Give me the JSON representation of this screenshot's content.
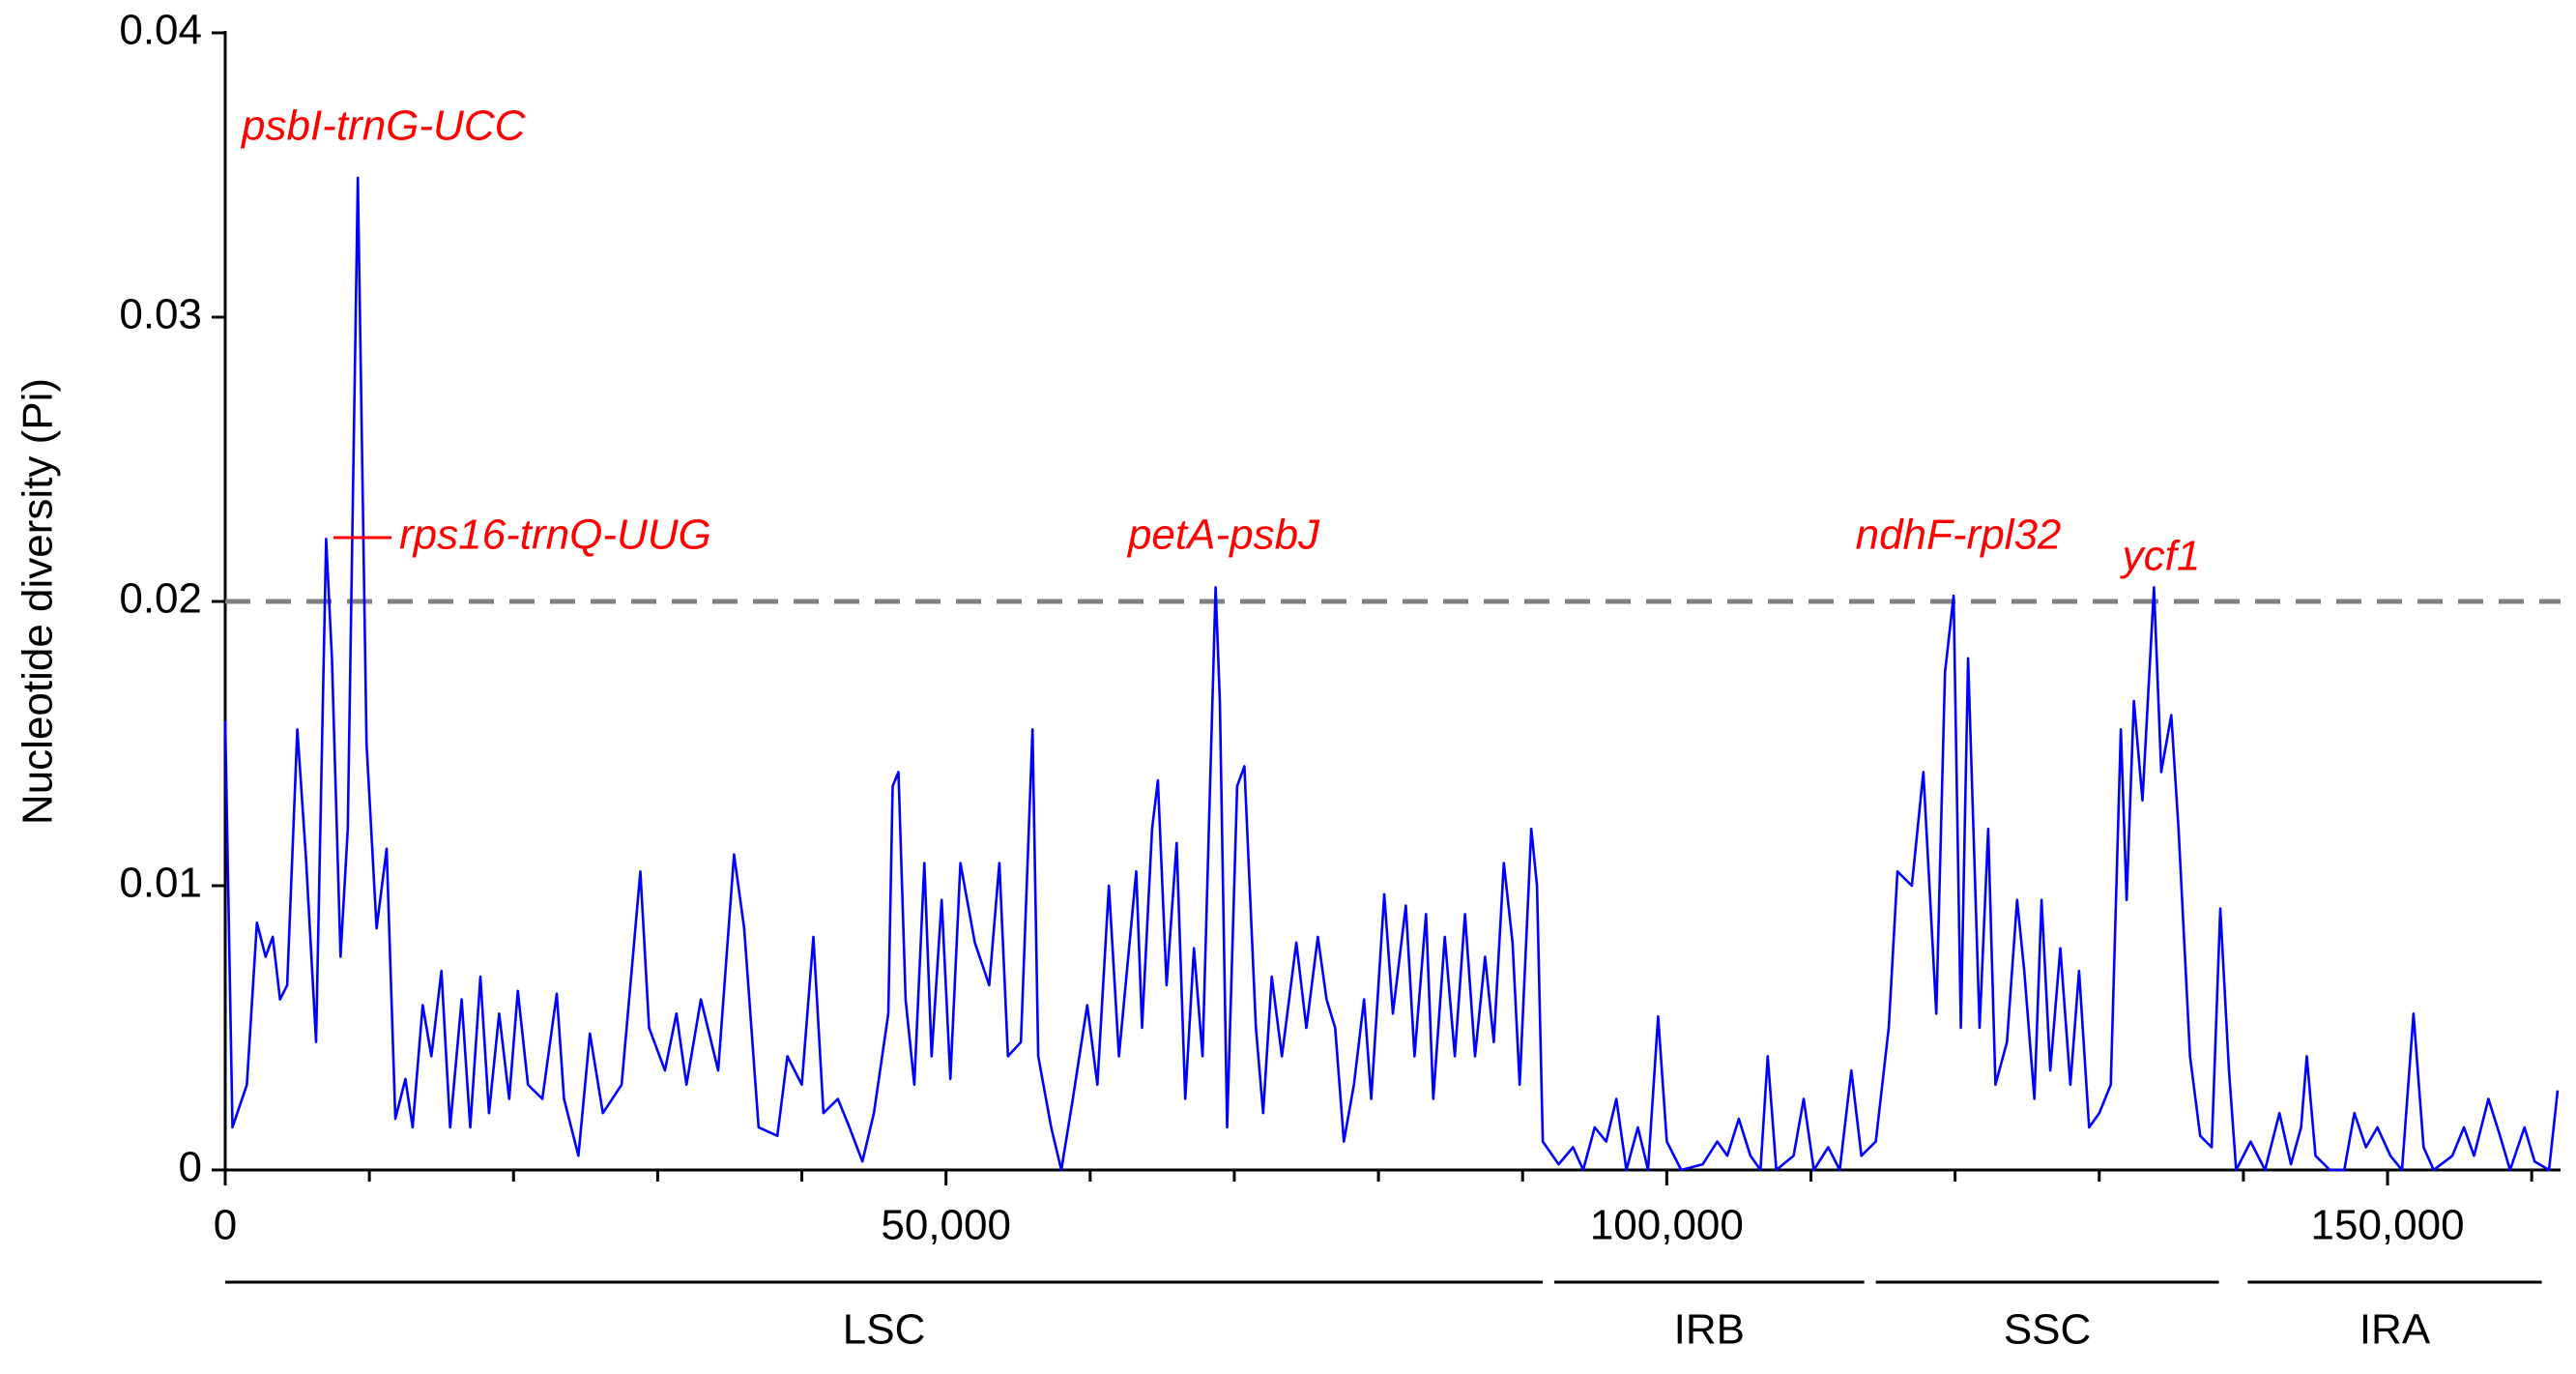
{
  "chart_data": {
    "type": "line",
    "y_label": "Nucleotide diversity (Pi)",
    "ylim": [
      0,
      0.04
    ],
    "yticks": [
      0,
      0.01,
      0.02,
      0.03,
      0.04
    ],
    "xlim": [
      0,
      162000
    ],
    "xticks": [
      0,
      {
        "value": 50000,
        "label": "50,000"
      },
      {
        "value": 100000,
        "label": "100,000"
      },
      {
        "value": 150000,
        "label": "150,000"
      }
    ],
    "xminorticks": [
      10000,
      20000,
      30000,
      40000,
      60000,
      70000,
      80000,
      90000,
      110000,
      120000,
      130000,
      140000,
      160000
    ],
    "threshold": 0.02,
    "threshold_color": "#808080",
    "annotation_color": "#ff0000",
    "annotations": [
      "psbI-trnG-UCC",
      "rps16-trnQ-UUG",
      "petA-psbJ",
      "ndhF-rpl32",
      "ycf1"
    ],
    "regions": [
      {
        "name": "LSC",
        "start": 0,
        "end": 91400
      },
      {
        "name": "IRB",
        "start": 92200,
        "end": 113700
      },
      {
        "name": "SSC",
        "start": 114500,
        "end": 138300
      },
      {
        "name": "IRA",
        "start": 140300,
        "end": 160700
      }
    ],
    "series": [
      {
        "color": "#0000ff",
        "x": [
          0,
          500,
          1500,
          2200,
          2800,
          3300,
          3800,
          4300,
          5000,
          5600,
          6300,
          7000,
          7400,
          8000,
          8500,
          9200,
          9800,
          10500,
          11200,
          11800,
          12500,
          13000,
          13700,
          14300,
          15000,
          15600,
          16400,
          17000,
          17700,
          18300,
          19000,
          19700,
          20300,
          21000,
          22000,
          23000,
          23500,
          24500,
          25300,
          26200,
          27500,
          28800,
          29400,
          30500,
          31300,
          32000,
          33000,
          34200,
          35300,
          36000,
          37000,
          38300,
          39000,
          40000,
          40800,
          41500,
          42500,
          43300,
          44200,
          45000,
          46000,
          46300,
          46700,
          47200,
          47800,
          48500,
          49000,
          49700,
          50300,
          51000,
          52000,
          53000,
          53700,
          54300,
          55200,
          56000,
          56400,
          57300,
          58000,
          58800,
          59800,
          60500,
          61300,
          62000,
          63200,
          63600,
          64300,
          64700,
          65300,
          66000,
          66600,
          67200,
          67800,
          68700,
          69000,
          69500,
          70200,
          70700,
          71500,
          72000,
          72600,
          73300,
          74300,
          75000,
          75800,
          76400,
          77000,
          77600,
          78300,
          79000,
          79500,
          80400,
          81000,
          81900,
          82500,
          83300,
          83800,
          84600,
          85300,
          86000,
          86700,
          87400,
          88000,
          88700,
          89300,
          89800,
          90600,
          91000,
          91400,
          92500,
          93500,
          94200,
          95000,
          95800,
          96500,
          97200,
          98000,
          98700,
          99400,
          100000,
          101000,
          102500,
          103500,
          104200,
          105000,
          105800,
          106500,
          107000,
          107600,
          108800,
          109500,
          110200,
          111200,
          112000,
          112800,
          113500,
          114500,
          115400,
          116000,
          117000,
          117800,
          118700,
          119300,
          119900,
          120400,
          120900,
          121700,
          122300,
          122800,
          123600,
          124300,
          124800,
          125500,
          126000,
          126600,
          127300,
          128000,
          128600,
          129300,
          130000,
          130800,
          131500,
          131900,
          132400,
          133000,
          133800,
          134300,
          135000,
          135500,
          136300,
          137000,
          137800,
          138400,
          139000,
          139500,
          140500,
          141500,
          142500,
          143300,
          144000,
          144400,
          145000,
          146000,
          147000,
          147700,
          148500,
          149300,
          150200,
          151000,
          151800,
          152500,
          153200,
          154500,
          155300,
          156000,
          157000,
          157800,
          158500,
          159500,
          160200,
          161200,
          161800
        ],
        "values": [
          0.0158,
          0.0015,
          0.003,
          0.0087,
          0.0075,
          0.0082,
          0.006,
          0.0065,
          0.0155,
          0.011,
          0.0045,
          0.0222,
          0.018,
          0.0075,
          0.012,
          0.0349,
          0.015,
          0.0085,
          0.0113,
          0.0018,
          0.0032,
          0.0015,
          0.0058,
          0.004,
          0.007,
          0.0015,
          0.006,
          0.0015,
          0.0068,
          0.002,
          0.0055,
          0.0025,
          0.0063,
          0.003,
          0.0025,
          0.0062,
          0.0025,
          0.0005,
          0.0048,
          0.002,
          0.003,
          0.0105,
          0.005,
          0.0035,
          0.0055,
          0.003,
          0.006,
          0.0035,
          0.0111,
          0.0085,
          0.0015,
          0.0012,
          0.004,
          0.003,
          0.0082,
          0.002,
          0.0025,
          0.0015,
          0.0003,
          0.002,
          0.0055,
          0.0135,
          0.014,
          0.006,
          0.003,
          0.0108,
          0.004,
          0.0095,
          0.0032,
          0.0108,
          0.008,
          0.0065,
          0.0108,
          0.004,
          0.0045,
          0.0155,
          0.004,
          0.0015,
          0,
          0.0025,
          0.0058,
          0.003,
          0.01,
          0.004,
          0.0105,
          0.005,
          0.012,
          0.0137,
          0.0065,
          0.0115,
          0.0025,
          0.0078,
          0.004,
          0.0205,
          0.0165,
          0.0015,
          0.0135,
          0.0142,
          0.005,
          0.002,
          0.0068,
          0.004,
          0.008,
          0.005,
          0.0082,
          0.006,
          0.005,
          0.001,
          0.003,
          0.006,
          0.0025,
          0.0097,
          0.0055,
          0.0093,
          0.004,
          0.009,
          0.0025,
          0.0082,
          0.004,
          0.009,
          0.004,
          0.0075,
          0.0045,
          0.0108,
          0.008,
          0.003,
          0.012,
          0.01,
          0.001,
          0.0002,
          0.0008,
          0,
          0.0015,
          0.001,
          0.0025,
          0,
          0.0015,
          0,
          0.0054,
          0.001,
          0,
          0.0002,
          0.001,
          0.0005,
          0.0018,
          0.0005,
          0,
          0.004,
          0,
          0.0005,
          0.0025,
          0,
          0.0008,
          0,
          0.0035,
          0.0005,
          0.001,
          0.005,
          0.0105,
          0.01,
          0.014,
          0.0055,
          0.0175,
          0.0202,
          0.005,
          0.018,
          0.005,
          0.012,
          0.003,
          0.0045,
          0.0095,
          0.007,
          0.0025,
          0.0095,
          0.0035,
          0.0078,
          0.003,
          0.007,
          0.0015,
          0.002,
          0.003,
          0.0155,
          0.0095,
          0.0165,
          0.013,
          0.0205,
          0.014,
          0.016,
          0.012,
          0.004,
          0.0012,
          0.0008,
          0.0092,
          0.0035,
          0,
          0.001,
          0,
          0.002,
          0.0002,
          0.0015,
          0.004,
          0.0005,
          0,
          0,
          0.002,
          0.0008,
          0.0015,
          0.0005,
          0,
          0.0055,
          0.0008,
          0,
          0.0005,
          0.0015,
          0.0005,
          0.0025,
          0.0012,
          0,
          0.0015,
          0.0003,
          0,
          0.0028
        ]
      }
    ]
  }
}
